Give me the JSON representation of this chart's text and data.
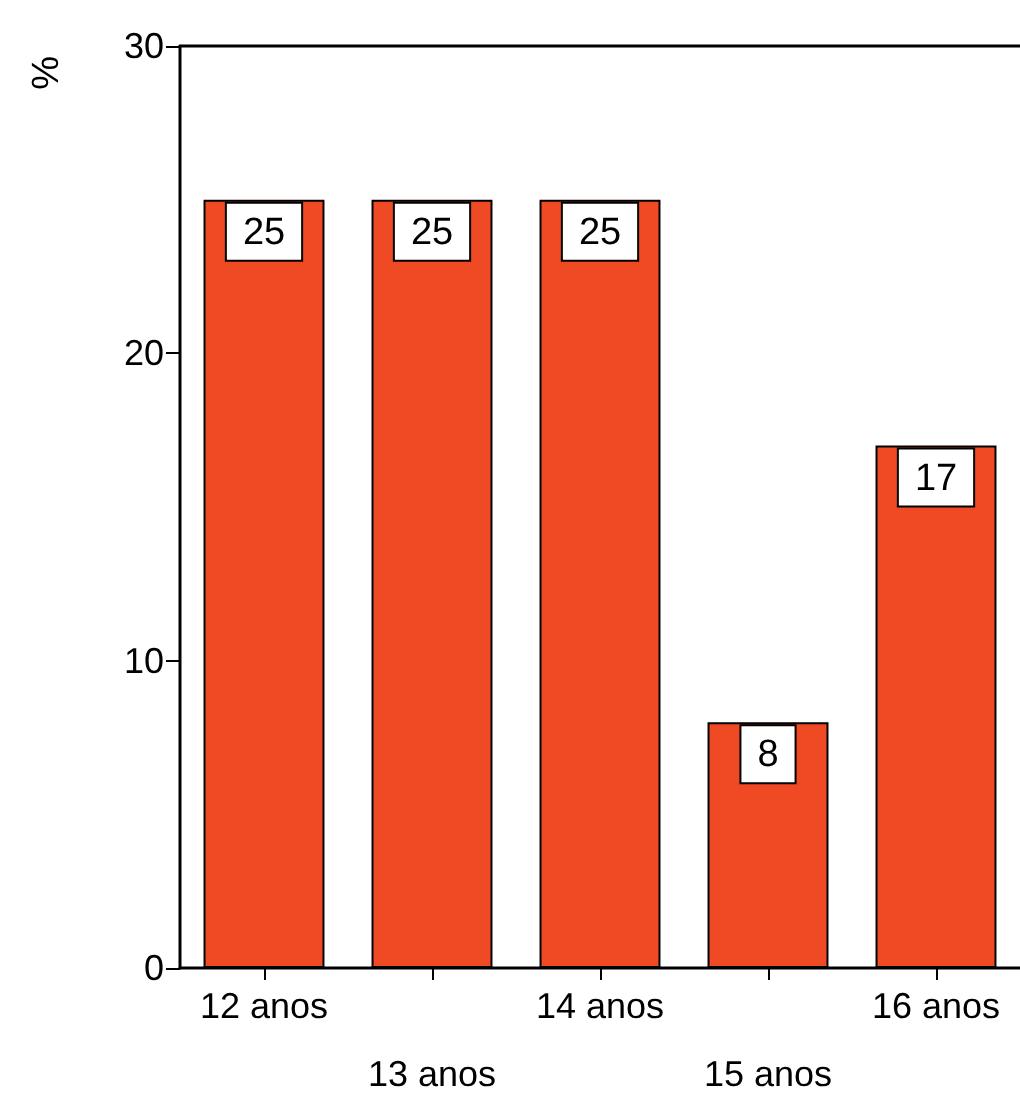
{
  "chart_data": {
    "type": "bar",
    "ylabel": "%",
    "categories": [
      "12 anos",
      "13 anos",
      "14 anos",
      "15 anos",
      "16 anos"
    ],
    "values": [
      25,
      25,
      25,
      8,
      17
    ],
    "color": "#f04a25",
    "ylim": [
      0,
      30
    ],
    "yticks": [
      0,
      10,
      20,
      30
    ],
    "data_labels": true
  }
}
